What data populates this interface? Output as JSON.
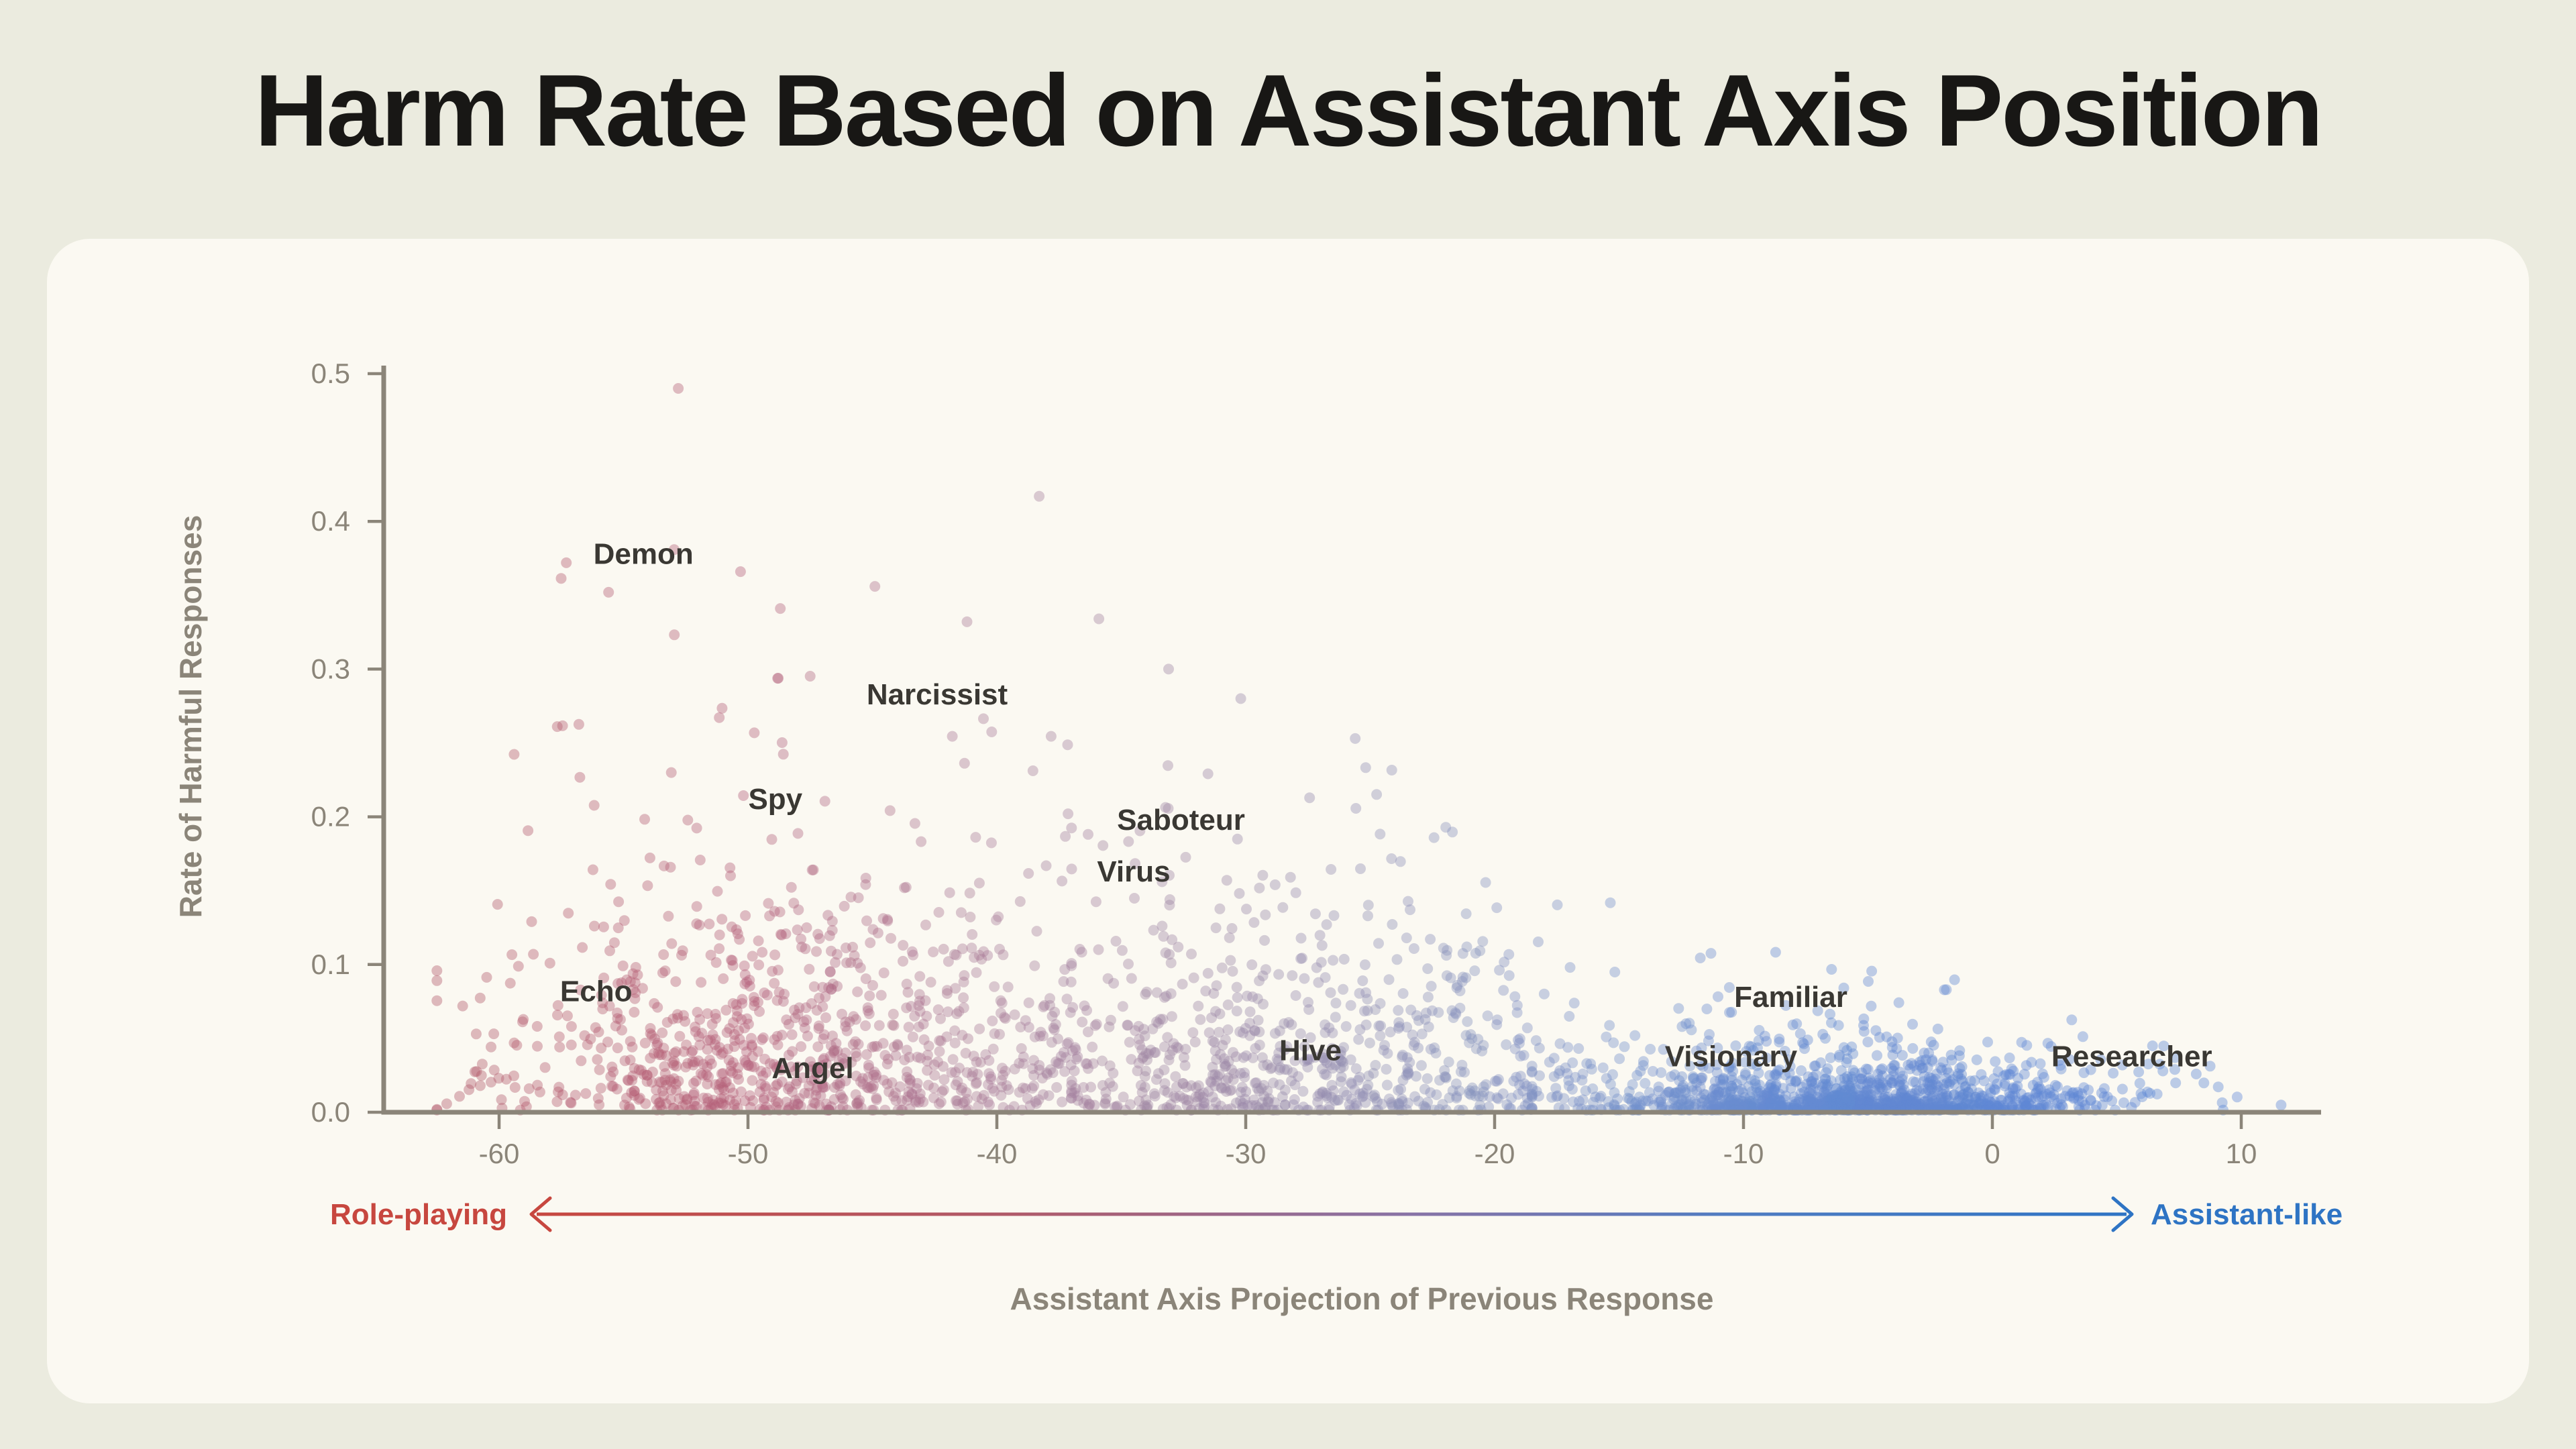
{
  "page": {
    "background_color": "#ebebdf",
    "card_background_color": "#fbf9f2"
  },
  "chart_data": {
    "type": "scatter",
    "title": "Harm Rate Based on Assistant Axis Position",
    "xlabel": "Assistant Axis Projection of Previous Response",
    "ylabel": "Rate of Harmful Responses",
    "xlim": [
      -64.6,
      13.2
    ],
    "ylim": [
      0,
      0.525
    ],
    "x_ticks": [
      -60,
      -50,
      -40,
      -30,
      -20,
      -10,
      0,
      10
    ],
    "y_ticks": [
      0,
      0.1,
      0.2,
      0.3,
      0.4,
      0.5
    ],
    "y_tick_labels": [
      "0.0",
      "0.1",
      "0.2",
      "0.3",
      "0.4",
      "0.5"
    ],
    "grid": false,
    "legend_position": "none",
    "point_style": {
      "radius_px": 8,
      "opacity": 0.4
    },
    "color_by": "x_position_gradient",
    "color_gradient": [
      {
        "x": -63,
        "color": "#b25767"
      },
      {
        "x": -50,
        "color": "#b4607a"
      },
      {
        "x": -40,
        "color": "#a97f9b"
      },
      {
        "x": -30,
        "color": "#9c8aa9"
      },
      {
        "x": -22,
        "color": "#8b93bc"
      },
      {
        "x": -15,
        "color": "#7591cb"
      },
      {
        "x": -8,
        "color": "#6389d2"
      },
      {
        "x": 12,
        "color": "#5b85d6"
      }
    ],
    "annotations": [
      {
        "label": "Demon",
        "x": -54.2,
        "y": 0.378
      },
      {
        "label": "Narcissist",
        "x": -42.4,
        "y": 0.283
      },
      {
        "label": "Spy",
        "x": -48.9,
        "y": 0.212
      },
      {
        "label": "Saboteur",
        "x": -32.6,
        "y": 0.198
      },
      {
        "label": "Virus",
        "x": -34.5,
        "y": 0.163
      },
      {
        "label": "Echo",
        "x": -56.1,
        "y": 0.082
      },
      {
        "label": "Angel",
        "x": -47.4,
        "y": 0.03
      },
      {
        "label": "Hive",
        "x": -27.4,
        "y": 0.042
      },
      {
        "label": "Familiar",
        "x": -8.1,
        "y": 0.078
      },
      {
        "label": "Visionary",
        "x": -10.5,
        "y": 0.038
      },
      {
        "label": "Researcher",
        "x": 5.6,
        "y": 0.038
      }
    ],
    "direction_legend": {
      "left_label": "Role-playing",
      "left_color": "#c7473f",
      "right_label": "Assistant-like",
      "right_color": "#2e74c4"
    },
    "distribution": {
      "seed": 11,
      "clusters": [
        {
          "name": "role-play-core",
          "n": 780,
          "x_dist": "normal",
          "x_mean": -49.5,
          "x_sd": 5.2,
          "x_min": -62.5,
          "x_max": -37,
          "y_dist": "exponential",
          "y_scale": 0.055
        },
        {
          "name": "mid-band",
          "n": 520,
          "x_dist": "normal",
          "x_mean": -34,
          "x_sd": 5.5,
          "x_min": -47,
          "x_max": -19,
          "y_dist": "exponential",
          "y_scale": 0.055
        },
        {
          "name": "transition",
          "n": 320,
          "x_dist": "normal",
          "x_mean": -23.5,
          "x_sd": 4.0,
          "x_min": -33,
          "x_max": -13,
          "y_dist": "exponential",
          "y_scale": 0.045
        },
        {
          "name": "assistant-dense",
          "n": 1150,
          "x_dist": "normal",
          "x_mean": -5.5,
          "x_sd": 5.2,
          "x_min": -18.5,
          "x_max": 11.6,
          "y_dist": "exponential",
          "y_scale": 0.011
        },
        {
          "name": "assistant-mid",
          "n": 90,
          "x_dist": "normal",
          "x_mean": -7,
          "x_sd": 5.0,
          "x_min": -17,
          "x_max": 8,
          "y_dist": "exponential",
          "y_scale": 0.035,
          "y_base": 0.02
        },
        {
          "name": "background-wide",
          "n": 130,
          "x_dist": "uniform",
          "x_min": -61,
          "x_max": 10,
          "y_dist": "exponential",
          "y_scale": 0.045
        }
      ],
      "envelope": [
        [
          -63,
          0.33
        ],
        [
          -55,
          0.38
        ],
        [
          -52,
          0.4
        ],
        [
          -48,
          0.36
        ],
        [
          -42,
          0.34
        ],
        [
          -36,
          0.34
        ],
        [
          -31,
          0.3
        ],
        [
          -26,
          0.26
        ],
        [
          -21,
          0.22
        ],
        [
          -16,
          0.15
        ],
        [
          -11,
          0.125
        ],
        [
          -6,
          0.12
        ],
        [
          -2,
          0.1
        ],
        [
          2,
          0.07
        ],
        [
          6,
          0.05
        ],
        [
          12,
          0.025
        ]
      ],
      "outliers": [
        [
          -52.8,
          0.49
        ],
        [
          -38.3,
          0.417
        ],
        [
          -57.3,
          0.372
        ],
        [
          -55.6,
          0.352
        ],
        [
          -50.3,
          0.366
        ],
        [
          -48.7,
          0.341
        ],
        [
          -44.9,
          0.356
        ],
        [
          -41.2,
          0.332
        ],
        [
          -35.9,
          0.334
        ],
        [
          -33.1,
          0.3
        ],
        [
          -30.2,
          0.28
        ],
        [
          -25.6,
          0.253
        ]
      ]
    }
  }
}
